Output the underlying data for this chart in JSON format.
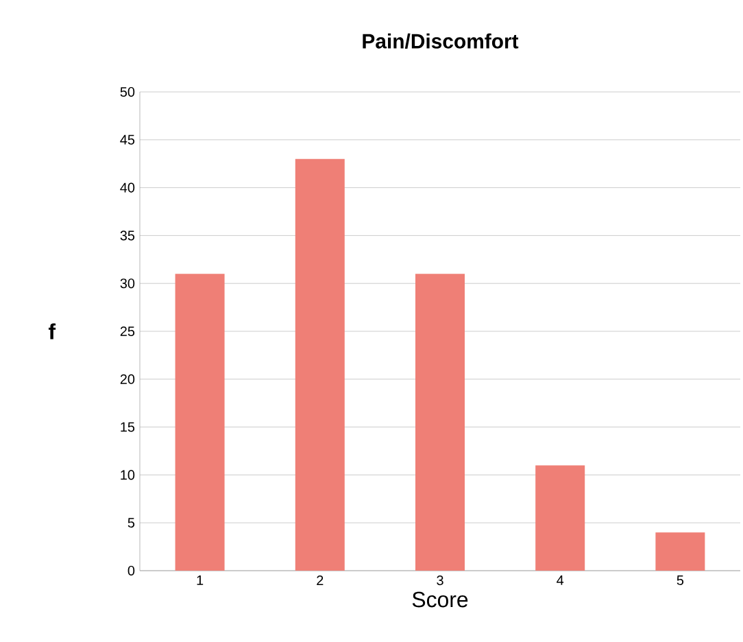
{
  "chart_data": {
    "type": "bar",
    "title": "**Pain/Discomfort**",
    "xlabel": "Score",
    "ylabel": "**f**",
    "categories": [
      "1",
      "2",
      "3",
      "4",
      "5"
    ],
    "values": [
      31,
      43,
      31,
      11,
      4
    ],
    "color": "#ef7f76",
    "ylim": [
      0,
      50
    ],
    "yticks": [
      0,
      5,
      10,
      15,
      20,
      25,
      30,
      35,
      40,
      45,
      50
    ],
    "grid": "y"
  }
}
